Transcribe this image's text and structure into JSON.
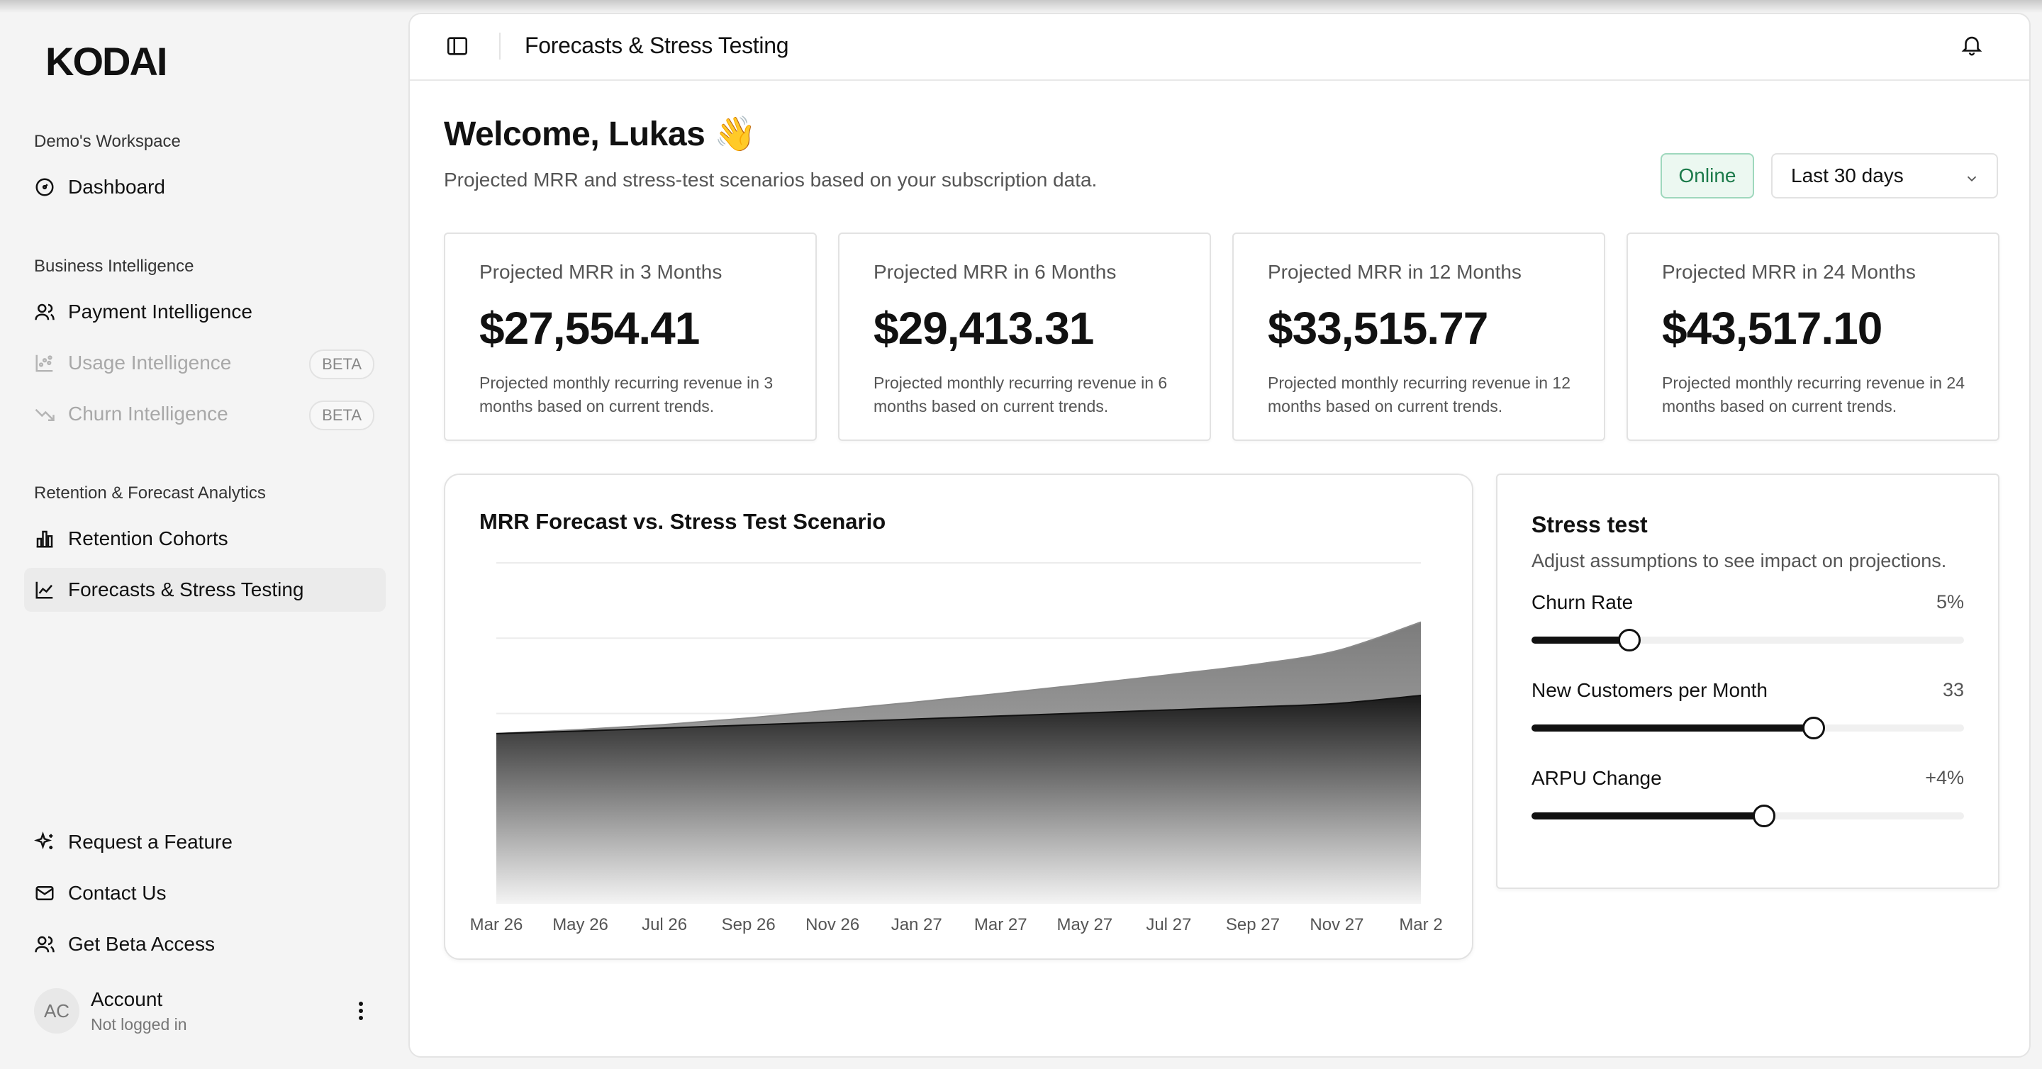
{
  "brand": {
    "logo_text": "KODAI"
  },
  "sidebar": {
    "workspace_label": "Demo's Workspace",
    "dashboard": "Dashboard",
    "bi_label": "Business Intelligence",
    "payment": "Payment Intelligence",
    "usage": "Usage Intelligence",
    "usage_badge": "BETA",
    "churn": "Churn Intelligence",
    "churn_badge": "BETA",
    "rf_label": "Retention & Forecast Analytics",
    "cohorts": "Retention Cohorts",
    "forecasts": "Forecasts & Stress Testing",
    "request_feature": "Request a Feature",
    "contact": "Contact Us",
    "beta_access": "Get Beta Access",
    "account": {
      "initials": "AC",
      "name": "Account",
      "status": "Not logged in"
    }
  },
  "topbar": {
    "title": "Forecasts & Stress Testing"
  },
  "header": {
    "welcome": "Welcome, Lukas 👋",
    "subtitle": "Projected MRR and stress-test scenarios based on your subscription data.",
    "status": "Online",
    "range": "Last 30 days"
  },
  "kpis": [
    {
      "label": "Projected MRR in 3 Months",
      "value": "$27,554.41",
      "desc": "Projected monthly recurring revenue in 3 months based on current trends."
    },
    {
      "label": "Projected MRR in 6 Months",
      "value": "$29,413.31",
      "desc": "Projected monthly recurring revenue in 6 months based on current trends."
    },
    {
      "label": "Projected MRR in 12 Months",
      "value": "$33,515.77",
      "desc": "Projected monthly recurring revenue in 12 months based on current trends."
    },
    {
      "label": "Projected MRR in 24 Months",
      "value": "$43,517.10",
      "desc": "Projected monthly recurring revenue in 24 months based on current trends."
    }
  ],
  "chart": {
    "title": "MRR Forecast vs. Stress Test Scenario"
  },
  "chart_data": {
    "type": "area",
    "title": "MRR Forecast vs. Stress Test Scenario",
    "x": [
      "Mar 26",
      "May 26",
      "Jul 26",
      "Sep 26",
      "Nov 26",
      "Jan 27",
      "Mar 27",
      "May 27",
      "Jul 27",
      "Sep 27",
      "Nov 27",
      "Mar 2"
    ],
    "x_tick_labels": [
      "Mar 26",
      "May 26",
      "Jul 26",
      "Sep 26",
      "Nov 26",
      "Jan 27",
      "Mar 27",
      "May 27",
      "Jul 27",
      "Sep 27",
      "Nov 27",
      "Mar 2"
    ],
    "series": [
      {
        "values": [
          26000,
          26800,
          27800,
          29100,
          30700,
          32300,
          34000,
          35800,
          37700,
          39700,
          42500,
          48200
        ]
      },
      {
        "values": [
          26000,
          26500,
          27100,
          27700,
          28300,
          28900,
          29500,
          30100,
          30700,
          31300,
          32000,
          33600
        ]
      }
    ],
    "ylim": [
      0,
      60000
    ],
    "grid": true,
    "legend": "none",
    "colors": [
      "#8e8e8e",
      "#1a1a1a"
    ]
  },
  "stress": {
    "title": "Stress test",
    "subtitle": "Adjust assumptions to see impact on projections.",
    "sliders": [
      {
        "label": "Churn Rate",
        "value": "5%",
        "fraction": 0.226
      },
      {
        "label": "New Customers per Month",
        "value": "33",
        "fraction": 0.652
      },
      {
        "label": "ARPU Change",
        "value": "+4%",
        "fraction": 0.538
      }
    ]
  }
}
